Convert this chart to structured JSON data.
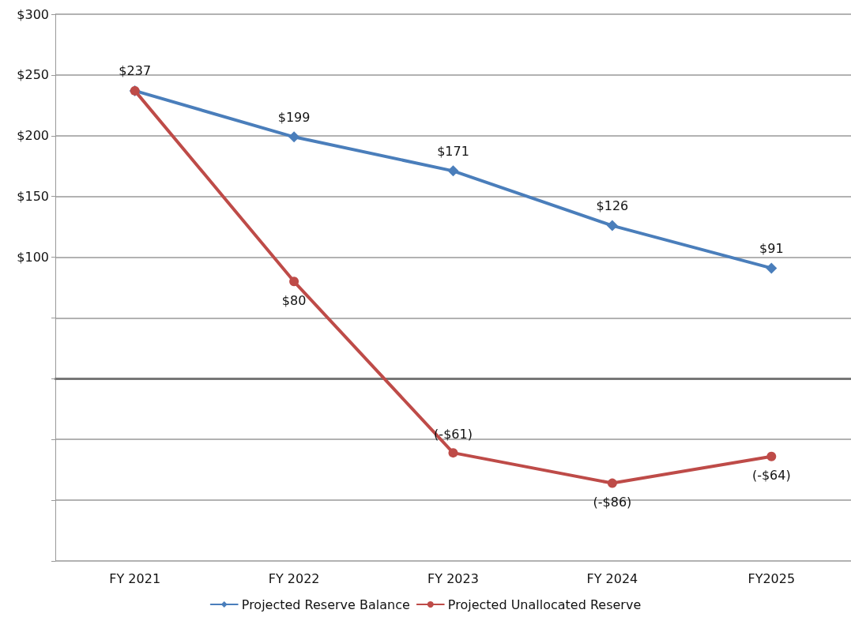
{
  "chart_data": {
    "type": "line",
    "categories": [
      "FY 2021",
      "FY 2022",
      "FY 2023",
      "FY 2024",
      "FY2025"
    ],
    "series": [
      {
        "name": "Projected Reserve Balance",
        "color": "#4a7ebb",
        "marker": "diamond",
        "values": [
          237,
          199,
          171,
          126,
          91
        ],
        "value_labels": [
          "$237",
          "$199",
          "$171",
          "$126",
          "$91"
        ]
      },
      {
        "name": "Projected Unallocated Reserve",
        "color": "#be4b48",
        "marker": "circle",
        "values": [
          237,
          80,
          -61,
          -86,
          -64
        ],
        "value_labels": [
          null,
          "$80",
          "(-$61)",
          "(-$86)",
          "(-$64)"
        ]
      }
    ],
    "ylim": [
      -150,
      300
    ],
    "yticks": [
      {
        "value": -150,
        "label": null
      },
      {
        "value": -100,
        "label": null
      },
      {
        "value": -50,
        "label": null
      },
      {
        "value": 0,
        "label": null
      },
      {
        "value": 50,
        "label": null
      },
      {
        "value": 100,
        "label": "$100"
      },
      {
        "value": 150,
        "label": "$150"
      },
      {
        "value": 200,
        "label": "$200"
      },
      {
        "value": 250,
        "label": "$250"
      },
      {
        "value": 300,
        "label": "$300"
      }
    ],
    "grid": "y",
    "legend": "bottom",
    "line_style": "solid"
  }
}
